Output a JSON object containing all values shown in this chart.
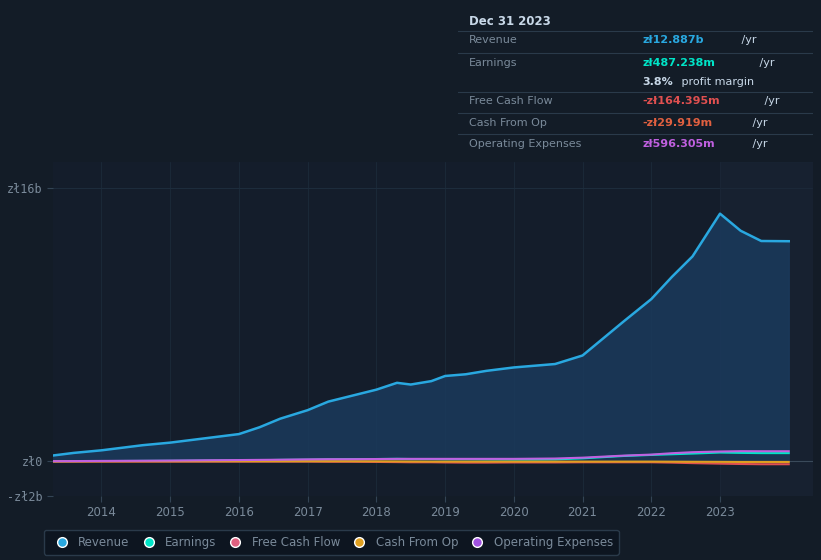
{
  "bg_color": "#131c27",
  "plot_bg_color": "#141d2b",
  "grid_color": "#1e2d3d",
  "text_color": "#7a8a9a",
  "title_color": "#ccddee",
  "years": [
    2013.0,
    2013.3,
    2013.6,
    2014.0,
    2014.3,
    2014.6,
    2015.0,
    2015.3,
    2015.6,
    2016.0,
    2016.3,
    2016.6,
    2017.0,
    2017.3,
    2017.6,
    2018.0,
    2018.3,
    2018.5,
    2018.8,
    2019.0,
    2019.3,
    2019.6,
    2020.0,
    2020.3,
    2020.6,
    2021.0,
    2021.3,
    2021.6,
    2022.0,
    2022.3,
    2022.6,
    2023.0,
    2023.3,
    2023.6,
    2024.0
  ],
  "revenue": [
    0.25,
    0.35,
    0.5,
    0.65,
    0.8,
    0.95,
    1.1,
    1.25,
    1.4,
    1.6,
    2.0,
    2.5,
    3.0,
    3.5,
    3.8,
    4.2,
    4.6,
    4.5,
    4.7,
    5.0,
    5.1,
    5.3,
    5.5,
    5.6,
    5.7,
    6.2,
    7.2,
    8.2,
    9.5,
    10.8,
    12.0,
    14.5,
    13.5,
    12.9,
    12.887
  ],
  "earnings": [
    0.005,
    0.01,
    0.015,
    0.02,
    0.025,
    0.03,
    0.035,
    0.04,
    0.05,
    0.06,
    0.07,
    0.09,
    0.1,
    0.12,
    0.13,
    0.14,
    0.15,
    0.14,
    0.14,
    0.13,
    0.13,
    0.12,
    0.11,
    0.11,
    0.12,
    0.18,
    0.25,
    0.32,
    0.38,
    0.42,
    0.46,
    0.52,
    0.5,
    0.487,
    0.487
  ],
  "free_cash_flow": [
    0.0,
    -0.005,
    -0.01,
    -0.01,
    -0.01,
    -0.01,
    -0.01,
    -0.01,
    -0.01,
    -0.01,
    -0.01,
    -0.01,
    -0.01,
    -0.02,
    -0.02,
    -0.03,
    -0.04,
    -0.05,
    -0.05,
    -0.06,
    -0.07,
    -0.07,
    -0.06,
    -0.06,
    -0.06,
    -0.05,
    -0.05,
    -0.05,
    -0.05,
    -0.07,
    -0.1,
    -0.13,
    -0.15,
    -0.164,
    -0.164
  ],
  "cash_from_op": [
    0.0,
    0.0,
    0.005,
    0.01,
    0.01,
    0.01,
    0.01,
    0.01,
    0.01,
    0.01,
    0.01,
    0.01,
    0.01,
    0.01,
    0.01,
    0.005,
    0.0,
    -0.005,
    -0.01,
    -0.01,
    -0.01,
    -0.01,
    -0.01,
    -0.01,
    -0.01,
    -0.01,
    -0.01,
    -0.01,
    -0.01,
    -0.015,
    -0.02,
    -0.025,
    -0.03,
    -0.03,
    -0.03
  ],
  "operating_expenses": [
    0.01,
    0.015,
    0.02,
    0.03,
    0.035,
    0.04,
    0.05,
    0.06,
    0.07,
    0.08,
    0.09,
    0.1,
    0.12,
    0.13,
    0.13,
    0.14,
    0.15,
    0.15,
    0.15,
    0.15,
    0.15,
    0.15,
    0.15,
    0.16,
    0.17,
    0.22,
    0.28,
    0.34,
    0.4,
    0.48,
    0.54,
    0.58,
    0.6,
    0.596,
    0.596
  ],
  "revenue_color": "#29a8e0",
  "earnings_color": "#00e5c8",
  "free_cash_flow_color": "#e05050",
  "cash_from_op_color": "#e0a020",
  "operating_expenses_color": "#c060e0",
  "revenue_fill_color": "#1a3a5c",
  "xtick_years": [
    2014,
    2015,
    2016,
    2017,
    2018,
    2019,
    2020,
    2021,
    2022,
    2023
  ],
  "legend_items": [
    "Revenue",
    "Earnings",
    "Free Cash Flow",
    "Cash From Op",
    "Operating Expenses"
  ],
  "legend_colors": [
    "#29a8e0",
    "#00e5c8",
    "#e06080",
    "#e0a020",
    "#a050e0"
  ]
}
